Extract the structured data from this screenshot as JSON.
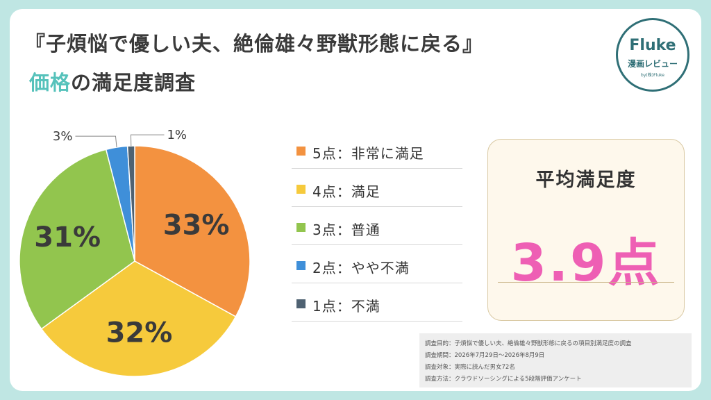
{
  "title_line1": "『子煩悩で優しい夫、絶倫雄々野獣形態に戻る』",
  "title_line2_accent": "価格",
  "title_line2_rest": "の満足度調査",
  "logo": {
    "name": "Fluke",
    "sub": "漫画レビュー",
    "byline": "by(株)Fluke"
  },
  "chart_data": {
    "type": "pie",
    "categories": [
      "5点：非常に満足",
      "4点：満足",
      "3点：普通",
      "2点：やや不満",
      "1点：不満"
    ],
    "values": [
      33,
      32,
      31,
      3,
      1
    ],
    "labels": [
      "33%",
      "32%",
      "31%",
      "3%",
      "1%"
    ],
    "colors": [
      "#f39240",
      "#f6ca3c",
      "#92c54e",
      "#3f8fd9",
      "#4f6272"
    ]
  },
  "average": {
    "label": "平均満足度",
    "value": "3.9点"
  },
  "notes": [
    "調査目的：子煩悩で優しい夫、絶倫雄々野獣形態に戻るの項目別満足度の調査",
    "調査期間：2026年7月29日～2026年8月9日",
    "調査対象：実際に読んだ男女72名",
    "調査方法：クラウドソーシングによる5段階評価アンケート"
  ]
}
